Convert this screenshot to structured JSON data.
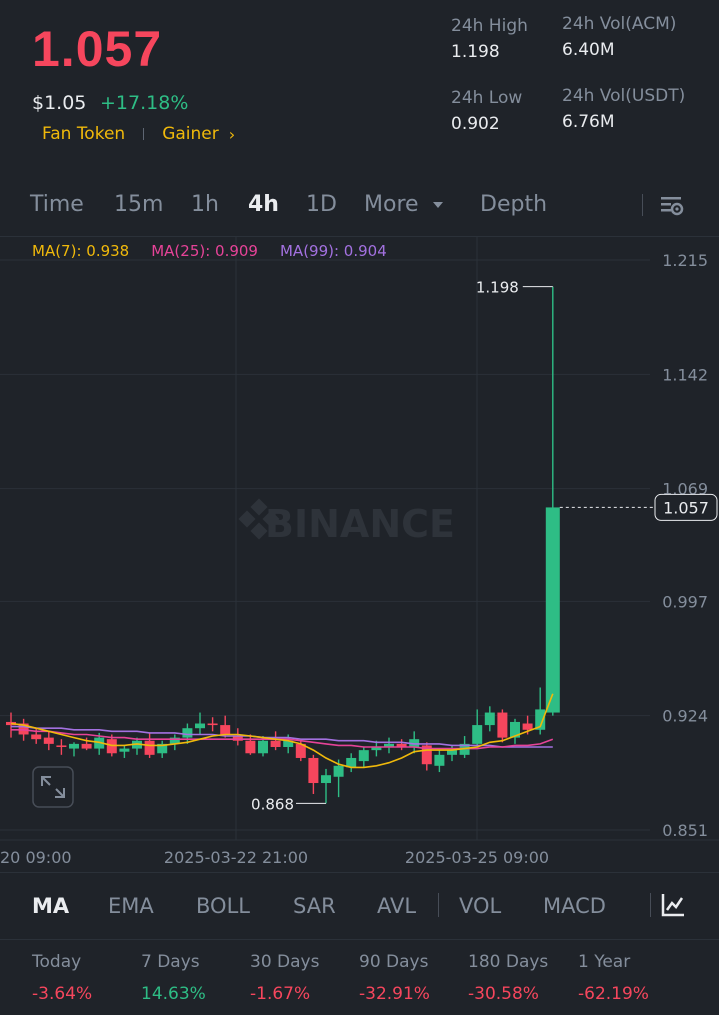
{
  "header": {
    "last_price": "1.057",
    "usd_price": "$1.05",
    "change_pct": "+17.18%",
    "tags": [
      "Fan Token",
      "Gainer"
    ],
    "stats": {
      "high_label": "24h High",
      "high_value": "1.198",
      "low_label": "24h Low",
      "low_value": "0.902",
      "vol_base_label": "24h Vol(ACM)",
      "vol_base_value": "6.40M",
      "vol_quote_label": "24h Vol(USDT)",
      "vol_quote_value": "6.76M"
    }
  },
  "tabs": {
    "items": [
      "Time",
      "15m",
      "1h",
      "4h",
      "1D",
      "More",
      "Depth"
    ],
    "active": "4h"
  },
  "ma": {
    "ma7": "MA(7): 0.938",
    "ma25": "MA(25): 0.909",
    "ma99": "MA(99): 0.904"
  },
  "watermark": "BINANCE",
  "chart_data": {
    "type": "candlestick",
    "y_ticks": [
      "1.215",
      "1.142",
      "1.069",
      "0.997",
      "0.924",
      "0.851"
    ],
    "x_ticks": [
      "20 09:00",
      "2025-03-22 21:00",
      "2025-03-25 09:00"
    ],
    "current_price": "1.057",
    "high_label": "1.198",
    "low_label": "0.868",
    "ylim": [
      0.851,
      1.215
    ],
    "candles": [
      {
        "o": 0.92,
        "h": 0.926,
        "l": 0.91,
        "c": 0.918
      },
      {
        "o": 0.919,
        "h": 0.922,
        "l": 0.908,
        "c": 0.912
      },
      {
        "o": 0.912,
        "h": 0.916,
        "l": 0.906,
        "c": 0.909
      },
      {
        "o": 0.91,
        "h": 0.914,
        "l": 0.902,
        "c": 0.906
      },
      {
        "o": 0.905,
        "h": 0.909,
        "l": 0.899,
        "c": 0.904
      },
      {
        "o": 0.903,
        "h": 0.907,
        "l": 0.898,
        "c": 0.906
      },
      {
        "o": 0.906,
        "h": 0.91,
        "l": 0.902,
        "c": 0.903
      },
      {
        "o": 0.903,
        "h": 0.913,
        "l": 0.899,
        "c": 0.91
      },
      {
        "o": 0.909,
        "h": 0.912,
        "l": 0.898,
        "c": 0.9
      },
      {
        "o": 0.901,
        "h": 0.905,
        "l": 0.897,
        "c": 0.903
      },
      {
        "o": 0.903,
        "h": 0.91,
        "l": 0.899,
        "c": 0.908
      },
      {
        "o": 0.908,
        "h": 0.913,
        "l": 0.897,
        "c": 0.899
      },
      {
        "o": 0.9,
        "h": 0.908,
        "l": 0.897,
        "c": 0.906
      },
      {
        "o": 0.906,
        "h": 0.912,
        "l": 0.902,
        "c": 0.91
      },
      {
        "o": 0.91,
        "h": 0.919,
        "l": 0.906,
        "c": 0.916
      },
      {
        "o": 0.916,
        "h": 0.926,
        "l": 0.912,
        "c": 0.919
      },
      {
        "o": 0.919,
        "h": 0.923,
        "l": 0.914,
        "c": 0.918
      },
      {
        "o": 0.918,
        "h": 0.924,
        "l": 0.91,
        "c": 0.912
      },
      {
        "o": 0.911,
        "h": 0.916,
        "l": 0.905,
        "c": 0.908
      },
      {
        "o": 0.908,
        "h": 0.912,
        "l": 0.899,
        "c": 0.9
      },
      {
        "o": 0.9,
        "h": 0.911,
        "l": 0.898,
        "c": 0.908
      },
      {
        "o": 0.908,
        "h": 0.914,
        "l": 0.902,
        "c": 0.904
      },
      {
        "o": 0.904,
        "h": 0.912,
        "l": 0.9,
        "c": 0.908
      },
      {
        "o": 0.906,
        "h": 0.908,
        "l": 0.895,
        "c": 0.897
      },
      {
        "o": 0.897,
        "h": 0.899,
        "l": 0.874,
        "c": 0.881
      },
      {
        "o": 0.881,
        "h": 0.89,
        "l": 0.868,
        "c": 0.886
      },
      {
        "o": 0.885,
        "h": 0.896,
        "l": 0.872,
        "c": 0.892
      },
      {
        "o": 0.891,
        "h": 0.9,
        "l": 0.888,
        "c": 0.897
      },
      {
        "o": 0.895,
        "h": 0.904,
        "l": 0.891,
        "c": 0.902
      },
      {
        "o": 0.902,
        "h": 0.908,
        "l": 0.898,
        "c": 0.904
      },
      {
        "o": 0.904,
        "h": 0.91,
        "l": 0.9,
        "c": 0.906
      },
      {
        "o": 0.906,
        "h": 0.909,
        "l": 0.902,
        "c": 0.904
      },
      {
        "o": 0.904,
        "h": 0.914,
        "l": 0.9,
        "c": 0.909
      },
      {
        "o": 0.905,
        "h": 0.907,
        "l": 0.889,
        "c": 0.893
      },
      {
        "o": 0.892,
        "h": 0.902,
        "l": 0.888,
        "c": 0.899
      },
      {
        "o": 0.899,
        "h": 0.905,
        "l": 0.895,
        "c": 0.902
      },
      {
        "o": 0.899,
        "h": 0.911,
        "l": 0.897,
        "c": 0.906
      },
      {
        "o": 0.906,
        "h": 0.928,
        "l": 0.904,
        "c": 0.918
      },
      {
        "o": 0.918,
        "h": 0.93,
        "l": 0.914,
        "c": 0.926
      },
      {
        "o": 0.926,
        "h": 0.928,
        "l": 0.907,
        "c": 0.91
      },
      {
        "o": 0.91,
        "h": 0.922,
        "l": 0.906,
        "c": 0.92
      },
      {
        "o": 0.919,
        "h": 0.924,
        "l": 0.912,
        "c": 0.915
      },
      {
        "o": 0.915,
        "h": 0.942,
        "l": 0.912,
        "c": 0.928
      },
      {
        "o": 0.926,
        "h": 1.198,
        "l": 0.924,
        "c": 1.057
      }
    ],
    "ma7": [
      0.919,
      0.918,
      0.916,
      0.914,
      0.912,
      0.91,
      0.908,
      0.907,
      0.905,
      0.905,
      0.906,
      0.905,
      0.905,
      0.906,
      0.907,
      0.909,
      0.911,
      0.912,
      0.912,
      0.911,
      0.91,
      0.909,
      0.908,
      0.906,
      0.902,
      0.897,
      0.893,
      0.891,
      0.891,
      0.892,
      0.894,
      0.897,
      0.901,
      0.902,
      0.902,
      0.902,
      0.903,
      0.904,
      0.907,
      0.908,
      0.911,
      0.914,
      0.917,
      0.938
    ],
    "ma25": [
      0.915,
      0.915,
      0.914,
      0.914,
      0.913,
      0.912,
      0.912,
      0.911,
      0.91,
      0.91,
      0.909,
      0.909,
      0.909,
      0.909,
      0.909,
      0.909,
      0.909,
      0.909,
      0.909,
      0.909,
      0.909,
      0.909,
      0.909,
      0.908,
      0.907,
      0.906,
      0.905,
      0.905,
      0.904,
      0.904,
      0.904,
      0.904,
      0.904,
      0.903,
      0.903,
      0.903,
      0.903,
      0.903,
      0.904,
      0.904,
      0.905,
      0.905,
      0.906,
      0.909
    ],
    "ma99": [
      0.917,
      0.917,
      0.916,
      0.916,
      0.916,
      0.915,
      0.915,
      0.915,
      0.914,
      0.914,
      0.914,
      0.913,
      0.913,
      0.913,
      0.912,
      0.912,
      0.912,
      0.911,
      0.911,
      0.911,
      0.91,
      0.91,
      0.91,
      0.909,
      0.909,
      0.909,
      0.908,
      0.908,
      0.908,
      0.907,
      0.907,
      0.907,
      0.906,
      0.906,
      0.906,
      0.905,
      0.905,
      0.905,
      0.905,
      0.904,
      0.904,
      0.904,
      0.904,
      0.904
    ]
  },
  "indicators": {
    "items": [
      "MA",
      "EMA",
      "BOLL",
      "SAR",
      "AVL",
      "VOL",
      "MACD"
    ],
    "active": "MA"
  },
  "performance": [
    {
      "label": "Today",
      "value": "-3.64%"
    },
    {
      "label": "7 Days",
      "value": "14.63%"
    },
    {
      "label": "30 Days",
      "value": "-1.67%"
    },
    {
      "label": "90 Days",
      "value": "-32.91%"
    },
    {
      "label": "180 Days",
      "value": "-30.58%"
    },
    {
      "label": "1 Year",
      "value": "-62.19%"
    }
  ],
  "colors": {
    "up": "#2ebd85",
    "down": "#f6465d",
    "accent": "#f0b90b",
    "ma7": "#f0b90b",
    "ma25": "#e64398",
    "ma99": "#a371e0",
    "bg": "#1f2329"
  }
}
